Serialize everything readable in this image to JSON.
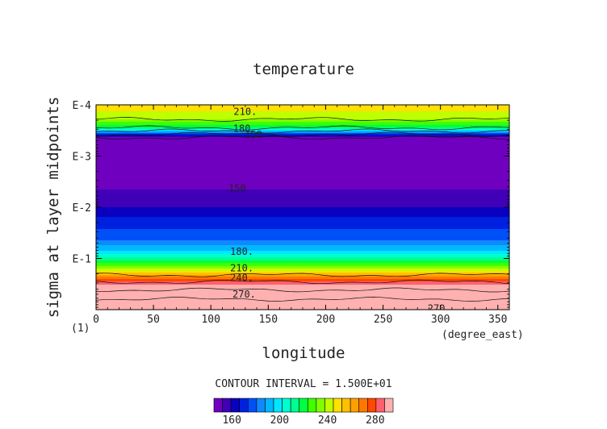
{
  "chart_data": {
    "type": "heatmap",
    "title": "temperature",
    "xlabel": "longitude",
    "ylabel": "sigma at layer midpoints",
    "x_unit": "(degree_east)",
    "y_unit_tick": "(1)",
    "xlim": [
      0,
      360
    ],
    "x_ticks": [
      0,
      50,
      100,
      150,
      200,
      250,
      300,
      350
    ],
    "y_scale": "log",
    "ylim": [
      0.0001,
      1
    ],
    "y_ticks": [
      {
        "value": 0.0001,
        "label": "E-4"
      },
      {
        "value": 0.001,
        "label": "E-3"
      },
      {
        "value": 0.01,
        "label": "E-2"
      },
      {
        "value": 0.1,
        "label": "E-1"
      }
    ],
    "grid": false,
    "contour_interval_text": "CONTOUR INTERVAL = 1.500E+01",
    "colorbar": {
      "levels": [
        145,
        150,
        155,
        160,
        165,
        170,
        175,
        180,
        185,
        190,
        195,
        200,
        205,
        210,
        215,
        220,
        225,
        230,
        235,
        240,
        245,
        250,
        255,
        260,
        265,
        270,
        275,
        280,
        285,
        290,
        295
      ],
      "ticks": [
        160,
        200,
        240,
        280
      ],
      "colors": [
        "#7000c0",
        "#4000b8",
        "#0a00c0",
        "#0020e0",
        "#0050f8",
        "#1088ff",
        "#00b8ff",
        "#00e8ff",
        "#00ffd0",
        "#00ff90",
        "#00ff40",
        "#40ff00",
        "#80ff00",
        "#c0ff00",
        "#ffe000",
        "#ffc000",
        "#ffa000",
        "#ff7800",
        "#ff4800",
        "#ff6070",
        "#ffb0b0"
      ]
    },
    "profile": [
      {
        "sigma": 0.0001,
        "temperature": 218
      },
      {
        "sigma": 0.00018,
        "temperature": 212
      },
      {
        "sigma": 0.00028,
        "temperature": 195
      },
      {
        "sigma": 0.00045,
        "temperature": 145
      },
      {
        "sigma": 0.001,
        "temperature": 144
      },
      {
        "sigma": 0.003,
        "temperature": 147
      },
      {
        "sigma": 0.0045,
        "temperature": 150
      },
      {
        "sigma": 0.01,
        "temperature": 155
      },
      {
        "sigma": 0.02,
        "temperature": 163
      },
      {
        "sigma": 0.04,
        "temperature": 168
      },
      {
        "sigma": 0.07,
        "temperature": 180
      },
      {
        "sigma": 0.1,
        "temperature": 192
      },
      {
        "sigma": 0.16,
        "temperature": 210
      },
      {
        "sigma": 0.24,
        "temperature": 233
      },
      {
        "sigma": 0.32,
        "temperature": 245
      },
      {
        "sigma": 0.5,
        "temperature": 263
      },
      {
        "sigma": 0.75,
        "temperature": 276
      },
      {
        "sigma": 1.0,
        "temperature": 283
      }
    ],
    "contour_labels": [
      {
        "text": "210.",
        "lon": 130,
        "sigma": 0.000135
      },
      {
        "text": "180",
        "lon": 127,
        "sigma": 0.00029
      },
      {
        "text": "150",
        "lon": 137,
        "sigma": 0.00038
      },
      {
        "text": "150",
        "lon": 123,
        "sigma": 0.0043
      },
      {
        "text": "180.",
        "lon": 127,
        "sigma": 0.074
      },
      {
        "text": "210.",
        "lon": 127,
        "sigma": 0.155
      },
      {
        "text": "240.",
        "lon": 127,
        "sigma": 0.24
      },
      {
        "text": "270.",
        "lon": 129,
        "sigma": 0.5
      },
      {
        "text": "270.",
        "lon": 299,
        "sigma": 0.94
      }
    ]
  }
}
